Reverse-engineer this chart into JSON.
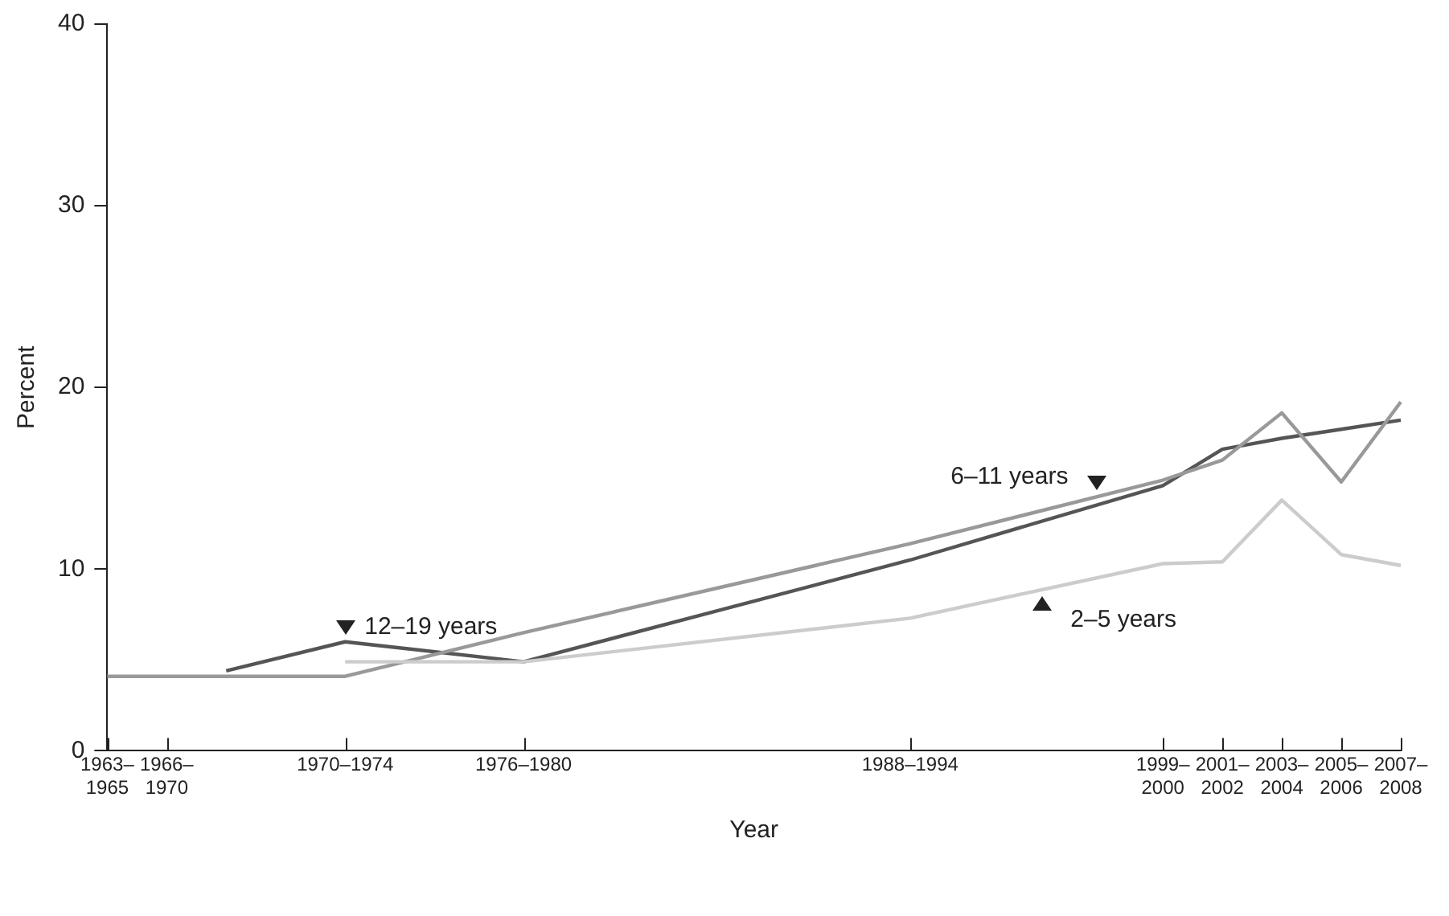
{
  "chart_data": {
    "type": "line",
    "xlabel": "Year",
    "ylabel": "Percent",
    "categories": [
      "1963–1965",
      null,
      null,
      null,
      "1966–1970",
      null,
      null,
      null,
      null,
      null,
      null,
      null,
      null,
      null,
      null,
      null,
      "1970–1974",
      null,
      null,
      null,
      null,
      null,
      null,
      null,
      null,
      null,
      null,
      null,
      "1976–1980",
      null,
      null,
      null,
      null,
      null,
      null,
      null,
      null,
      null,
      null,
      null,
      null,
      null,
      null,
      null,
      null,
      null,
      null,
      null,
      null,
      null,
      null,
      null,
      null,
      null,
      "1988–1994",
      null,
      null,
      null,
      null,
      null,
      null,
      null,
      null,
      null,
      null,
      null,
      null,
      null,
      null,
      null,
      null,
      "1999–2000",
      null,
      null,
      null,
      "2001–2002",
      null,
      null,
      null,
      "2003–2004",
      null,
      null,
      null,
      "2005–2006",
      null,
      null,
      null,
      "2007–2008"
    ],
    "ylim": [
      0,
      40
    ],
    "yticks": [
      0,
      10,
      20,
      30,
      40
    ],
    "grid": false,
    "legend": false,
    "marker": "none",
    "line_style": "solid",
    "series": [
      {
        "name": "2–5 years",
        "color": "#cccccc",
        "values": [
          null,
          null,
          null,
          null,
          null,
          null,
          null,
          null,
          null,
          null,
          null,
          null,
          null,
          null,
          null,
          null,
          4.9,
          null,
          null,
          null,
          null,
          null,
          null,
          null,
          null,
          null,
          null,
          null,
          4.9,
          null,
          null,
          null,
          null,
          null,
          null,
          null,
          null,
          null,
          null,
          null,
          null,
          null,
          null,
          null,
          null,
          null,
          null,
          null,
          null,
          null,
          null,
          null,
          null,
          null,
          7.3,
          null,
          null,
          null,
          null,
          null,
          null,
          null,
          null,
          null,
          null,
          null,
          null,
          null,
          null,
          null,
          null,
          10.3,
          null,
          null,
          null,
          10.4,
          null,
          null,
          null,
          13.8,
          null,
          null,
          null,
          10.8,
          null,
          null,
          null,
          10.2
        ]
      },
      {
        "name": "6–11 years",
        "color": "#999999",
        "values": [
          4.1,
          null,
          null,
          null,
          null,
          null,
          null,
          null,
          null,
          null,
          null,
          null,
          null,
          null,
          null,
          null,
          4.1,
          null,
          null,
          null,
          null,
          null,
          null,
          null,
          null,
          null,
          null,
          null,
          6.5,
          null,
          null,
          null,
          null,
          null,
          null,
          null,
          null,
          null,
          null,
          null,
          null,
          null,
          null,
          null,
          null,
          null,
          null,
          null,
          null,
          null,
          null,
          null,
          null,
          null,
          11.4,
          null,
          null,
          null,
          null,
          null,
          null,
          null,
          null,
          null,
          null,
          null,
          null,
          null,
          null,
          null,
          null,
          14.9,
          null,
          null,
          null,
          16.0,
          null,
          null,
          null,
          18.6,
          null,
          null,
          null,
          14.8,
          null,
          null,
          null,
          19.2
        ]
      },
      {
        "name": "12–19 years",
        "color": "#555555",
        "values": [
          null,
          null,
          null,
          null,
          null,
          null,
          null,
          null,
          4.4,
          null,
          null,
          null,
          null,
          null,
          null,
          null,
          6.0,
          null,
          null,
          null,
          null,
          null,
          null,
          null,
          null,
          null,
          null,
          null,
          4.9,
          null,
          null,
          null,
          null,
          null,
          null,
          null,
          null,
          null,
          null,
          null,
          null,
          null,
          null,
          null,
          null,
          null,
          null,
          null,
          null,
          null,
          null,
          null,
          null,
          null,
          10.5,
          null,
          null,
          null,
          null,
          null,
          null,
          null,
          null,
          null,
          null,
          null,
          null,
          null,
          null,
          null,
          null,
          14.6,
          null,
          null,
          null,
          16.6,
          null,
          null,
          null,
          17.2,
          null,
          null,
          null,
          17.7,
          null,
          null,
          null,
          18.2
        ]
      }
    ]
  }
}
